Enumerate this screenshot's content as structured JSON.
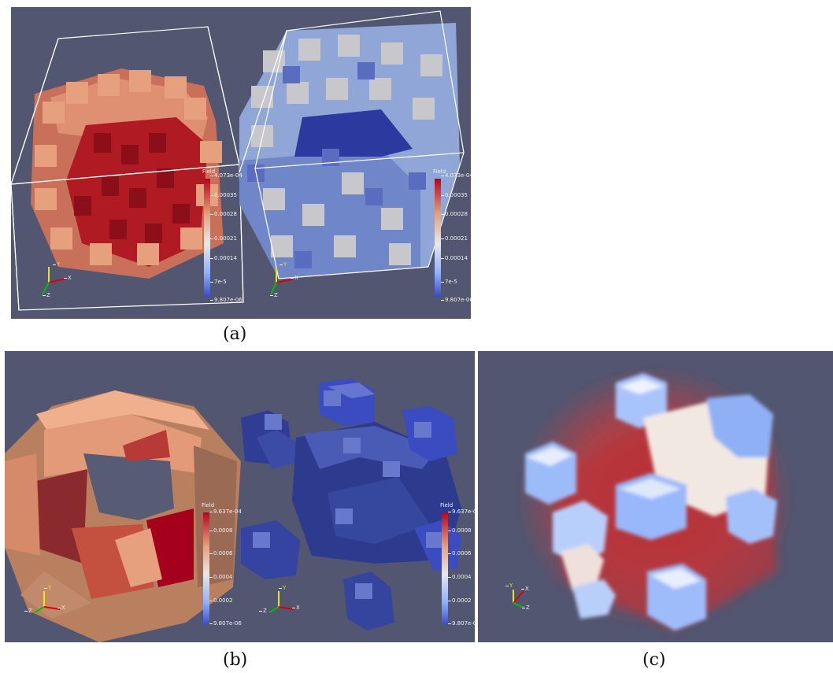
{
  "captions": {
    "a": "(a)",
    "b": "(b)",
    "c": "(c)"
  },
  "colorbar_a": {
    "title": "Field",
    "ticks": [
      "4.073e-04",
      "0.00035",
      "0.00028",
      "0.00021",
      "0.00014",
      "7e-5",
      "9.807e-06"
    ]
  },
  "colorbar_b": {
    "title": "Field",
    "ticks": [
      "9.637e-04",
      "0.0008",
      "0.0006",
      "0.0004",
      "0.0002",
      "9.807e-06"
    ]
  },
  "axes": {
    "x": "X",
    "y": "Y",
    "z": "Z"
  },
  "colors": {
    "background": "#525671",
    "red_high": "#b4051e",
    "red_mid": "#d55a4a",
    "salmon": "#e6a07e",
    "white_mid": "#dcdcdc",
    "blue_mid": "#7c9ddc",
    "blue_low": "#3a4cc0"
  }
}
